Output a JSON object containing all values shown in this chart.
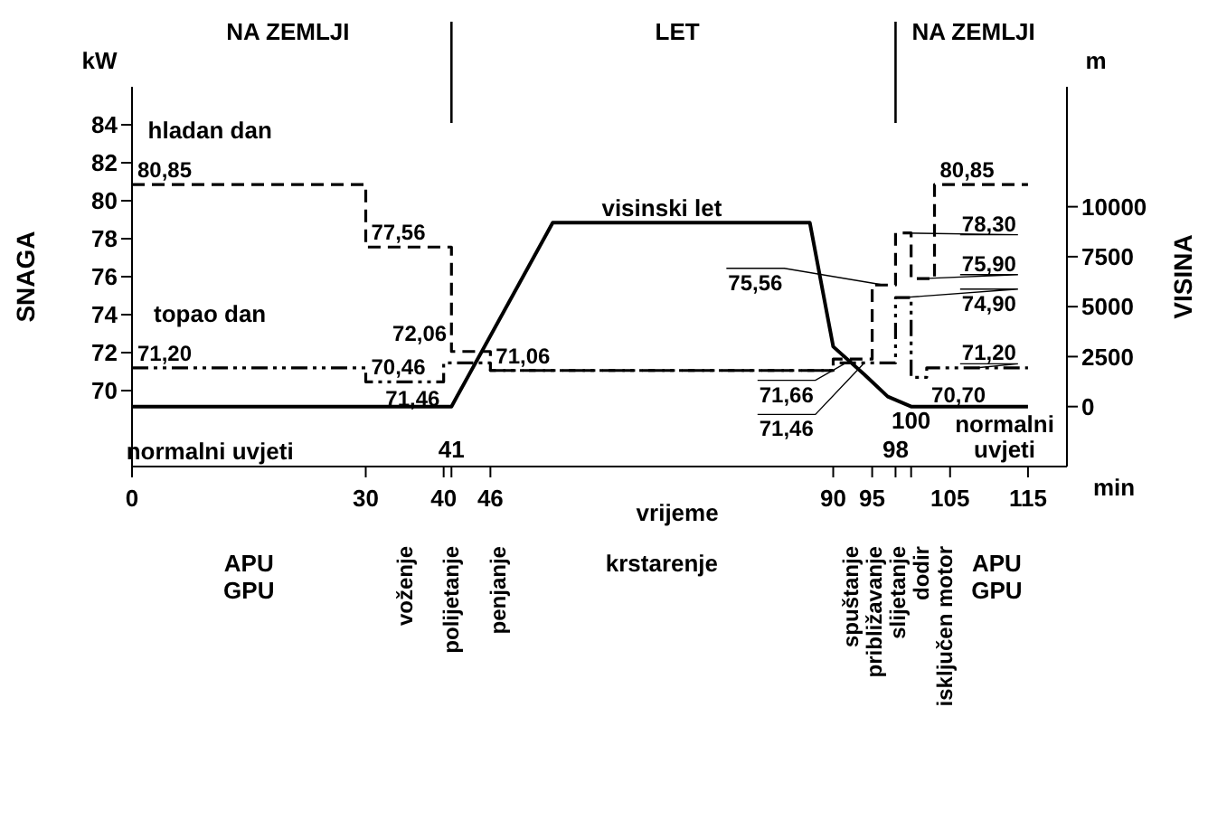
{
  "chart_data": {
    "type": "step",
    "xlabel": "vrijeme",
    "ylabel": "SNAGA",
    "y2label": "VISINA",
    "xlim": [
      0,
      120
    ],
    "xticks": [
      0,
      30,
      40,
      {
        "value": 41,
        "label": null
      },
      46,
      90,
      95,
      {
        "value": 98,
        "label": null
      },
      {
        "value": 100,
        "label": null
      },
      105,
      115
    ],
    "ylim": [
      66,
      86
    ],
    "yticks": [
      70,
      72,
      74,
      76,
      78,
      80,
      82,
      84
    ],
    "y2lim": [
      -3000,
      16000
    ],
    "y2ticks": [
      0,
      2500,
      5000,
      7500,
      10000
    ],
    "series": [
      {
        "name": "hladan dan",
        "type": "step",
        "color": "#000000",
        "line_style": "dashed",
        "x": [
          0,
          30,
          41,
          46,
          90,
          95,
          98,
          100,
          103,
          115
        ],
        "values": [
          80.85,
          77.56,
          72.06,
          71.06,
          71.66,
          75.56,
          78.3,
          75.9,
          80.85,
          80.85
        ],
        "value_labels": [
          "80,85",
          "77,56",
          "72,06",
          "71,06",
          "71,66",
          "75,56",
          "78,30",
          "75,90",
          "80,85",
          null
        ]
      },
      {
        "name": "topao dan",
        "type": "step",
        "color": "#000000",
        "line_style": "dashdot",
        "x": [
          0,
          30,
          40,
          46,
          90,
          98,
          100,
          102,
          115
        ],
        "values": [
          71.2,
          70.46,
          71.46,
          71.06,
          71.46,
          74.9,
          70.7,
          71.2,
          71.2
        ],
        "value_labels": [
          "71,20",
          "70,46",
          "71,46",
          null,
          "71,46",
          "74,90",
          "70,70",
          "71,20",
          null
        ]
      },
      {
        "name": "normalni uvjeti",
        "type": "line",
        "axis": "y2",
        "color": "#000000",
        "line_style": "solid",
        "x": [
          0,
          41,
          54,
          87,
          90,
          94,
          97,
          100,
          115
        ],
        "values": [
          0,
          0,
          9200,
          9200,
          3000,
          1600,
          500,
          0,
          0
        ]
      }
    ],
    "ref_lines": [
      {
        "axis": "x",
        "value": 41
      },
      {
        "axis": "x",
        "value": 98
      }
    ],
    "annotations": [
      "NA ZEMLJI",
      "LET",
      "NA ZEMLJI",
      "kW",
      "m",
      "min",
      "visinski let",
      "normalni uvjeti",
      "APU GPU",
      "voženje",
      "polijetanje",
      "penjanje",
      "krstarenje",
      "spuštanje",
      "približavanje",
      "slijetanje",
      "dodir",
      "isključen motor",
      "APU GPU",
      "41",
      "98",
      "100"
    ]
  }
}
